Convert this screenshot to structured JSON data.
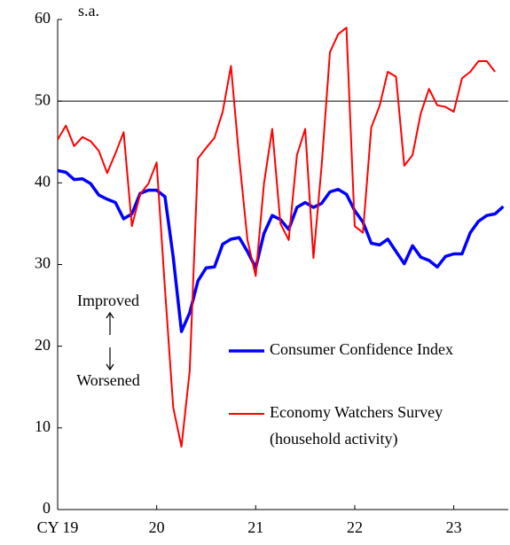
{
  "chart_data": {
    "type": "line",
    "units_label": "s.a.",
    "x": [
      0,
      1,
      2,
      3,
      4,
      5,
      6,
      7,
      8,
      9,
      10,
      11,
      12,
      13,
      14,
      15,
      16,
      17,
      18,
      19,
      20,
      21,
      22,
      23,
      24,
      25,
      26,
      27,
      28,
      29,
      30,
      31,
      32,
      33,
      34,
      35,
      36,
      37,
      38,
      39,
      40,
      41,
      42,
      43,
      44,
      45,
      46,
      47,
      48,
      49,
      50,
      51,
      52,
      53,
      54
    ],
    "xlim": [
      0,
      54.6
    ],
    "xticks": [
      {
        "value": 0,
        "label": "CY 19"
      },
      {
        "value": 12,
        "label": "20"
      },
      {
        "value": 24,
        "label": "21"
      },
      {
        "value": 36,
        "label": "22"
      },
      {
        "value": 48,
        "label": "23"
      }
    ],
    "ylim": [
      0,
      60
    ],
    "yticks": [
      0,
      10,
      20,
      30,
      40,
      50,
      60
    ],
    "reference_line": 50,
    "series": [
      {
        "name": "Consumer Confidence Index",
        "color": "#0000ff",
        "values": [
          41.5,
          41.3,
          40.4,
          40.5,
          39.9,
          38.5,
          38.0,
          37.6,
          35.6,
          36.2,
          38.7,
          39.1,
          39.1,
          38.3,
          30.9,
          21.8,
          24.1,
          28.0,
          29.6,
          29.7,
          32.5,
          33.1,
          33.3,
          31.6,
          29.6,
          33.8,
          36.0,
          35.5,
          34.3,
          37.0,
          37.6,
          37.0,
          37.5,
          38.9,
          39.2,
          38.6,
          36.6,
          35.2,
          32.6,
          32.4,
          33.1,
          31.6,
          30.1,
          32.3,
          30.9,
          30.5,
          29.7,
          31.0,
          31.3,
          31.3,
          33.9,
          35.3,
          36.0,
          36.2,
          37.1
        ]
      },
      {
        "name": "Economy Watchers Survey\n(household activity)",
        "color": "#ff0000",
        "values": [
          45.3,
          47.0,
          44.5,
          45.6,
          45.1,
          43.9,
          41.2,
          43.6,
          46.2,
          34.7,
          38.6,
          39.9,
          42.5,
          27.0,
          12.5,
          7.7,
          17.0,
          43.0,
          44.3,
          45.5,
          48.7,
          54.3,
          43.0,
          33.0,
          28.6,
          39.9,
          46.6,
          35.0,
          33.0,
          43.4,
          46.6,
          30.8,
          42.2,
          56.0,
          58.2,
          59.0,
          34.7,
          33.9,
          46.8,
          49.4,
          53.6,
          53.0,
          42.1,
          43.4,
          48.5,
          51.5,
          49.5,
          49.3,
          48.7,
          52.8,
          53.6,
          54.9,
          54.9,
          53.6,
          null
        ]
      }
    ],
    "annotations": [
      "Improved",
      "Worsened"
    ]
  }
}
